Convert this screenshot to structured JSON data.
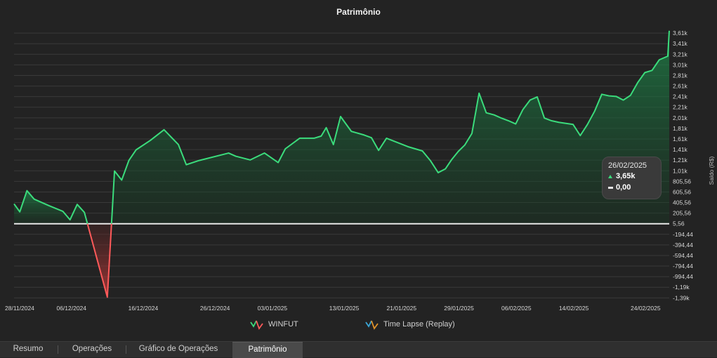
{
  "chart_data": {
    "type": "area",
    "title": "Patrimônio",
    "ylabel": "Saldo (R$)",
    "y_ticks": [
      "3,61k",
      "3,41k",
      "3,21k",
      "3,01k",
      "2,81k",
      "2,61k",
      "2,41k",
      "2,21k",
      "2,01k",
      "1,81k",
      "1,61k",
      "1,41k",
      "1,21k",
      "1,01k",
      "805,56",
      "605,56",
      "405,56",
      "205,56",
      "5,56",
      "-194,44",
      "-394,44",
      "-594,44",
      "-794,44",
      "-994,44",
      "-1,19k",
      "-1,39k"
    ],
    "y_tick_values": [
      3605.56,
      3405.56,
      3205.56,
      3005.56,
      2805.56,
      2605.56,
      2405.56,
      2205.56,
      2005.56,
      1805.56,
      1605.56,
      1405.56,
      1205.56,
      1005.56,
      805.56,
      605.56,
      405.56,
      205.56,
      5.56,
      -194.44,
      -394.44,
      -594.44,
      -794.44,
      -994.44,
      -1194.44,
      -1394.44
    ],
    "x_ticks": [
      {
        "label": "28/11/2024",
        "day": 0
      },
      {
        "label": "06/12/2024",
        "day": 8
      },
      {
        "label": "16/12/2024",
        "day": 18
      },
      {
        "label": "26/12/2024",
        "day": 28
      },
      {
        "label": "03/01/2025",
        "day": 36
      },
      {
        "label": "13/01/2025",
        "day": 46
      },
      {
        "label": "21/01/2025",
        "day": 54
      },
      {
        "label": "29/01/2025",
        "day": 62
      },
      {
        "label": "06/02/2025",
        "day": 70
      },
      {
        "label": "14/02/2025",
        "day": 78
      },
      {
        "label": "24/02/2025",
        "day": 88
      }
    ],
    "x_range": [
      0,
      91.3
    ],
    "y_range": [
      -1430,
      3700
    ],
    "baseline": 5.56,
    "series": [
      {
        "name": "WINFUT",
        "color_up": "#3bdc7c",
        "color_down": "#ff5a5a",
        "x": [
          0,
          0.8,
          1.8,
          2.8,
          4.8,
          6.8,
          7.8,
          8.8,
          9.8,
          13,
          14,
          15,
          16,
          17,
          19,
          20.9,
          22.9,
          24,
          25.8,
          29.9,
          30.9,
          32.9,
          34.9,
          36.8,
          37.8,
          39.8,
          41.8,
          42.8,
          43.5,
          44.5,
          45.5,
          47,
          48.8,
          49.8,
          50.8,
          51.9,
          54.9,
          56.9,
          58,
          59.1,
          60.1,
          61,
          61.9,
          62.8,
          63.8,
          64.8,
          65.8,
          66.9,
          67.9,
          68.9,
          69.9,
          70.9,
          71.9,
          72.9,
          73.9,
          74.9,
          75.9,
          76.9,
          77.9,
          78.9,
          79.9,
          80.9,
          81.9,
          82.9,
          83.9,
          84.9,
          85.9,
          86.9,
          87.9,
          88.9,
          89.9,
          91.1,
          91.3
        ],
        "y": [
          380,
          230,
          630,
          470,
          350,
          240,
          80,
          370,
          220,
          -1380,
          1000,
          830,
          1200,
          1400,
          1580,
          1780,
          1500,
          1120,
          1200,
          1340,
          1280,
          1210,
          1340,
          1160,
          1420,
          1620,
          1620,
          1660,
          1820,
          1500,
          2030,
          1750,
          1680,
          1630,
          1390,
          1620,
          1460,
          1380,
          1200,
          970,
          1040,
          1220,
          1370,
          1490,
          1710,
          2470,
          2100,
          2060,
          2000,
          1950,
          1890,
          2160,
          2340,
          2400,
          2000,
          1950,
          1920,
          1900,
          1880,
          1670,
          1880,
          2130,
          2450,
          2420,
          2410,
          2340,
          2430,
          2670,
          2860,
          2900,
          3100,
          3170,
          3650
        ]
      },
      {
        "name": "Time Lapse (Replay)",
        "color_up": "#3aa7d8",
        "color_down": "#e0932a"
      }
    ],
    "tooltip": {
      "date": "26/02/2025",
      "value1": "3,65k",
      "value2": "0,00"
    }
  },
  "tabs": [
    "Resumo",
    "Operações",
    "Gráfico de Operações",
    "Patrimônio"
  ],
  "active_tab": "Patrimônio"
}
